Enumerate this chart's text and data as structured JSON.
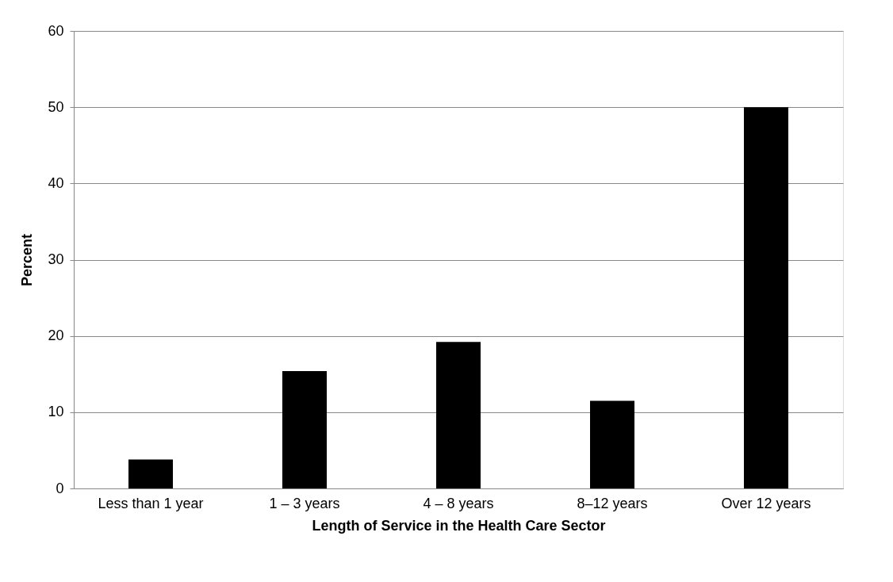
{
  "chart_data": {
    "type": "bar",
    "xlabel": "Length of  Service in the Health Care Sector",
    "ylabel": "Percent",
    "categories": [
      "Less than 1 year",
      "1 – 3 years",
      "4 – 8 years",
      "8–12 years",
      "Over 12 years"
    ],
    "values": [
      3.8,
      15.4,
      19.2,
      11.5,
      50
    ],
    "color": "#000000",
    "ylim": [
      0,
      60
    ],
    "yticks": [
      0,
      10,
      20,
      30,
      40,
      50,
      60
    ],
    "grid": "y"
  }
}
